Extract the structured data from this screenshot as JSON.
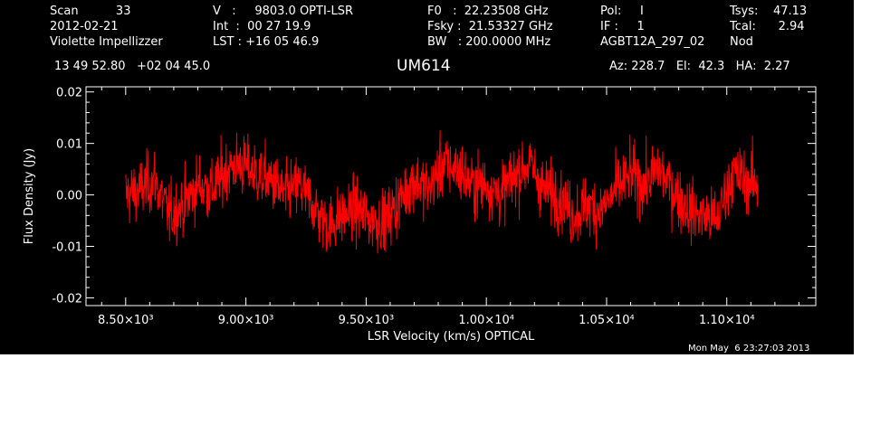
{
  "header": {
    "col1": [
      "Scan          33",
      "2012-02-21",
      "Violette Impellizzer"
    ],
    "col2": [
      "V   :     9803.0 OPTI-LSR",
      "Int  :  00 27 19.9",
      "LST : +16 05 46.9"
    ],
    "col3": [
      "F0   :  22.23508 GHz",
      "Fsky :  21.53327 GHz",
      "BW   : 200.0000 MHz"
    ],
    "col4": [
      "Pol:     I",
      "IF :     1",
      "AGBT12A_297_02"
    ],
    "col5": [
      "Tsys:    47.13",
      "Tcal:      2.94",
      "Nod"
    ],
    "coords": "13 49 52.80   +02 04 45.0",
    "source": "UM614",
    "azel": "Az: 228.7   El:  42.3   HA:  2.27",
    "timestamp": "Mon May  6 23:27:03 2013"
  },
  "colors": {
    "background": "#000000",
    "foreground": "#ffffff",
    "series": "#ff0000"
  },
  "chart_data": {
    "type": "line",
    "xlabel": "LSR Velocity (km/s) OPTICAL",
    "ylabel": "Flux Density (Jy)",
    "xlim": [
      8335,
      11370
    ],
    "ylim": [
      -0.0215,
      0.021
    ],
    "xticks": [
      {
        "value": 8500,
        "label": "8.50×10³"
      },
      {
        "value": 9000,
        "label": "9.00×10³"
      },
      {
        "value": 9500,
        "label": "9.50×10³"
      },
      {
        "value": 10000,
        "label": "1.00×10⁴"
      },
      {
        "value": 10500,
        "label": "1.05×10⁴"
      },
      {
        "value": 11000,
        "label": "1.10×10⁴"
      }
    ],
    "yticks": [
      {
        "value": 0.02,
        "label": "0.02"
      },
      {
        "value": 0.01,
        "label": "0.01"
      },
      {
        "value": 0.0,
        "label": "0.00"
      },
      {
        "value": -0.01,
        "label": "-0.01"
      },
      {
        "value": -0.02,
        "label": "-0.02"
      }
    ],
    "x_range": [
      8500,
      11130
    ],
    "envelope": {
      "x": [
        8500,
        8560,
        8620,
        8680,
        8740,
        8800,
        8860,
        8920,
        8980,
        9040,
        9100,
        9160,
        9220,
        9280,
        9340,
        9400,
        9460,
        9520,
        9580,
        9640,
        9700,
        9760,
        9820,
        9880,
        9940,
        10000,
        10060,
        10120,
        10180,
        10240,
        10300,
        10360,
        10420,
        10480,
        10540,
        10600,
        10660,
        10720,
        10780,
        10840,
        10900,
        10960,
        11020,
        11080,
        11130
      ],
      "y": [
        0.0,
        0.001,
        0.003,
        -0.004,
        -0.002,
        0.002,
        0.001,
        0.005,
        0.006,
        0.004,
        0.003,
        0.0,
        0.002,
        -0.002,
        -0.006,
        -0.004,
        -0.003,
        -0.005,
        -0.005,
        -0.001,
        0.003,
        0.001,
        0.006,
        0.005,
        0.002,
        0.002,
        0.0,
        0.004,
        0.006,
        0.001,
        0.0,
        -0.004,
        -0.002,
        -0.003,
        0.001,
        0.004,
        0.002,
        0.005,
        0.001,
        -0.003,
        -0.004,
        -0.005,
        0.004,
        0.003,
        0.002
      ]
    },
    "noise_rms": 0.0042
  }
}
